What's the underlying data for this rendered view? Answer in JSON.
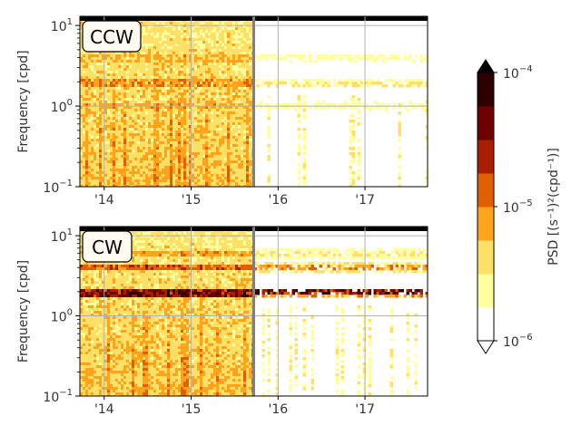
{
  "chart_data": [
    {
      "type": "heatmap",
      "panel_label": "CCW",
      "ylabel": "Frequency [cpd]",
      "yscale": "log",
      "ylim": [
        0.1,
        13
      ],
      "y_ticks": [
        {
          "value": 0.1,
          "base": "10",
          "exp": "−1"
        },
        {
          "value": 1,
          "base": "10",
          "exp": "0"
        },
        {
          "value": 10,
          "base": "10",
          "exp": "1"
        }
      ],
      "xlim": [
        2013.72,
        2017.72
      ],
      "x_ticks": [
        {
          "value": 2014,
          "label": "'14"
        },
        {
          "value": 2015,
          "label": "'15"
        },
        {
          "value": 2016,
          "label": "'16"
        },
        {
          "value": 2017,
          "label": "'17"
        }
      ],
      "divider_x": 2015.72,
      "tidal_peaks": [
        {
          "freq": 1.0,
          "level": 1
        },
        {
          "freq": 1.9,
          "level": 2
        },
        {
          "freq": 4.0,
          "level": 1
        }
      ]
    },
    {
      "type": "heatmap",
      "panel_label": "CW",
      "ylabel": "Frequency [cpd]",
      "yscale": "log",
      "ylim": [
        0.1,
        13
      ],
      "y_ticks": [
        {
          "value": 0.1,
          "base": "10",
          "exp": "−1"
        },
        {
          "value": 1,
          "base": "10",
          "exp": "0"
        },
        {
          "value": 10,
          "base": "10",
          "exp": "1"
        }
      ],
      "xlim": [
        2013.72,
        2017.72
      ],
      "x_ticks": [
        {
          "value": 2014,
          "label": "'14"
        },
        {
          "value": 2015,
          "label": "'15"
        },
        {
          "value": 2016,
          "label": "'16"
        },
        {
          "value": 2017,
          "label": "'17"
        }
      ],
      "divider_x": 2015.72,
      "tidal_peaks": [
        {
          "freq": 1.95,
          "level": 7
        },
        {
          "freq": 4.0,
          "level": 4
        },
        {
          "freq": 6.0,
          "level": 2
        }
      ]
    }
  ],
  "colorbar": {
    "label": "PSD [(s⁻¹)²(cpd⁻¹)]",
    "scale": "log",
    "min": 1e-06,
    "max": 0.0001,
    "extend": "both",
    "ticks": [
      {
        "value": 1e-06,
        "base": "10",
        "exp": "−6"
      },
      {
        "value": 1e-05,
        "base": "10",
        "exp": "−5"
      },
      {
        "value": 0.0001,
        "base": "10",
        "exp": "−4"
      }
    ],
    "levels": [
      "#ffffff",
      "#ffffa0",
      "#ffe066",
      "#ffa31a",
      "#e06000",
      "#a81e00",
      "#6e0000",
      "#300000"
    ],
    "extend_low_color": "#ffffff",
    "extend_high_color": "#000000"
  }
}
